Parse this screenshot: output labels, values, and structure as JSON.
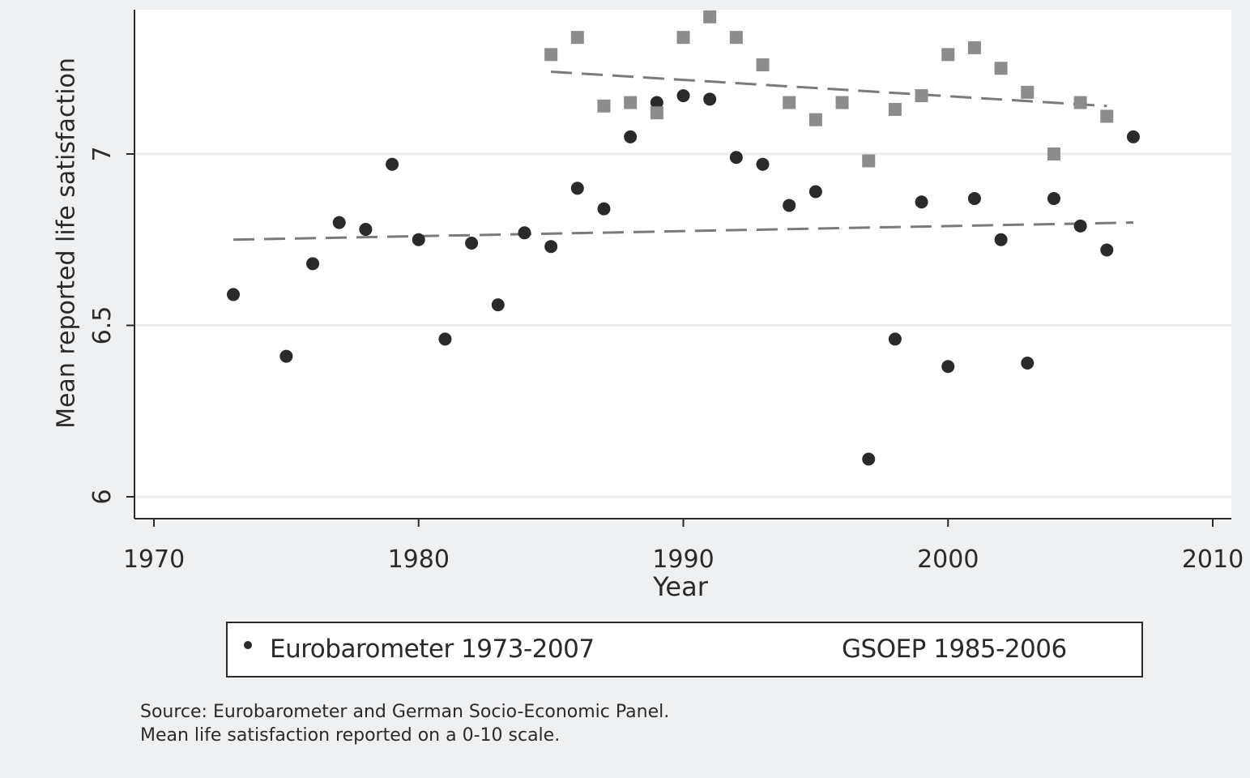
{
  "chart_data": {
    "type": "scatter",
    "xlabel": "Year",
    "ylabel": "Mean reported life satisfaction",
    "xlim": [
      1970,
      2010
    ],
    "ylim": [
      5.94,
      7.42
    ],
    "x_ticks": [
      "1970",
      "1980",
      "1990",
      "2000",
      "2010"
    ],
    "x_tick_values": [
      1970,
      1980,
      1990,
      2000,
      2010
    ],
    "y_ticks": [
      "6",
      "6.5",
      "7"
    ],
    "y_tick_values": [
      6,
      6.5,
      7
    ],
    "grid": true,
    "legend_position": "bottom",
    "series": [
      {
        "name": "Eurobarometer 1973-2007",
        "marker": "circle",
        "color": "#2a2a2a",
        "points": [
          [
            1973,
            6.59
          ],
          [
            1975,
            6.41
          ],
          [
            1976,
            6.68
          ],
          [
            1977,
            6.8
          ],
          [
            1978,
            6.78
          ],
          [
            1979,
            6.97
          ],
          [
            1980,
            6.75
          ],
          [
            1981,
            6.46
          ],
          [
            1982,
            6.74
          ],
          [
            1983,
            6.56
          ],
          [
            1984,
            6.77
          ],
          [
            1985,
            6.73
          ],
          [
            1986,
            6.9
          ],
          [
            1987,
            6.84
          ],
          [
            1988,
            7.05
          ],
          [
            1989,
            7.15
          ],
          [
            1990,
            7.17
          ],
          [
            1991,
            7.16
          ],
          [
            1992,
            6.99
          ],
          [
            1993,
            6.97
          ],
          [
            1994,
            6.85
          ],
          [
            1995,
            6.89
          ],
          [
            1997,
            6.11
          ],
          [
            1998,
            6.46
          ],
          [
            1999,
            6.86
          ],
          [
            2000,
            6.38
          ],
          [
            2001,
            6.87
          ],
          [
            2002,
            6.75
          ],
          [
            2003,
            6.39
          ],
          [
            2004,
            6.87
          ],
          [
            2005,
            6.79
          ],
          [
            2006,
            6.72
          ],
          [
            2007,
            7.05
          ]
        ],
        "fit_line": [
          [
            1973,
            6.75
          ],
          [
            2007,
            6.8
          ]
        ]
      },
      {
        "name": "GSOEP 1985-2006",
        "marker": "square",
        "color": "#8c8c8c",
        "points": [
          [
            1985,
            7.29
          ],
          [
            1986,
            7.34
          ],
          [
            1987,
            7.14
          ],
          [
            1988,
            7.15
          ],
          [
            1989,
            7.12
          ],
          [
            1990,
            7.34
          ],
          [
            1991,
            7.4
          ],
          [
            1992,
            7.34
          ],
          [
            1993,
            7.26
          ],
          [
            1994,
            7.15
          ],
          [
            1995,
            7.1
          ],
          [
            1996,
            7.15
          ],
          [
            1997,
            6.98
          ],
          [
            1998,
            7.13
          ],
          [
            1999,
            7.17
          ],
          [
            2000,
            7.29
          ],
          [
            2001,
            7.31
          ],
          [
            2002,
            7.25
          ],
          [
            2003,
            7.18
          ],
          [
            2004,
            7.0
          ],
          [
            2005,
            7.15
          ],
          [
            2006,
            7.11
          ]
        ],
        "fit_line": [
          [
            1985,
            7.24
          ],
          [
            2006,
            7.14
          ]
        ]
      }
    ],
    "legend": [
      "Eurobarometer 1973-2007",
      "GSOEP 1985-2006"
    ],
    "notes": [
      "Source: Eurobarometer and German Socio-Economic Panel.",
      "Mean life satisfaction reported on a 0-10 scale."
    ]
  }
}
